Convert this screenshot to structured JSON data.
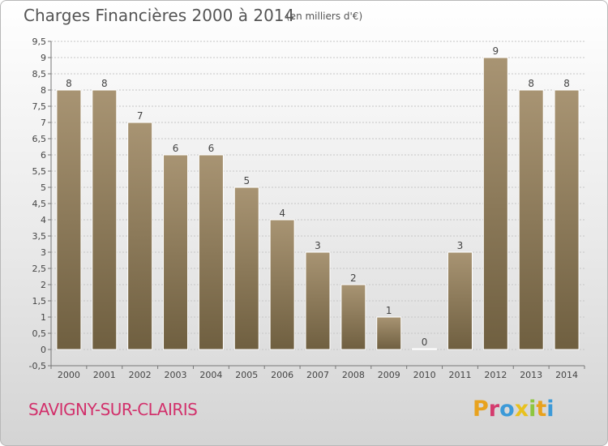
{
  "header": {
    "title": "Charges Financières 2000 à 2014",
    "unit": "(en milliers d'€)"
  },
  "footer": {
    "commune": "SAVIGNY-SUR-CLAIRIS",
    "logo_text": "Proxiti"
  },
  "colors": {
    "bar_top": "#a89473",
    "bar_bottom": "#6f5f40",
    "commune_text": "#d2306b",
    "logo_letters": [
      "#e8a21e",
      "#d43b6e",
      "#3c9ad8",
      "#e8c11e",
      "#8dc63f",
      "#e8a21e",
      "#3c9ad8"
    ]
  },
  "chart_data": {
    "type": "bar",
    "title": "Charges Financières 2000 à 2014",
    "subtitle": "(en milliers d'€)",
    "categories": [
      "2000",
      "2001",
      "2002",
      "2003",
      "2004",
      "2005",
      "2006",
      "2007",
      "2008",
      "2009",
      "2010",
      "2011",
      "2012",
      "2013",
      "2014"
    ],
    "values": [
      8,
      8,
      7,
      6,
      6,
      5,
      4,
      3,
      2,
      1,
      0,
      3,
      9,
      8,
      8
    ],
    "data_labels": [
      "8",
      "8",
      "7",
      "6",
      "6",
      "5",
      "4",
      "3",
      "2",
      "1",
      "0",
      "3",
      "9",
      "8",
      "8"
    ],
    "ylim": [
      -0.5,
      9.5
    ],
    "yticks": [
      "-0,5",
      "0",
      "0,5",
      "1",
      "1,5",
      "2",
      "2,5",
      "3",
      "3,5",
      "4",
      "4,5",
      "5",
      "5,5",
      "6",
      "6,5",
      "7",
      "7,5",
      "8",
      "8,5",
      "9",
      "9,5"
    ],
    "ytick_values": [
      -0.5,
      0,
      0.5,
      1,
      1.5,
      2,
      2.5,
      3,
      3.5,
      4,
      4.5,
      5,
      5.5,
      6,
      6.5,
      7,
      7.5,
      8,
      8.5,
      9,
      9.5
    ],
    "grid": true,
    "legend": "none"
  }
}
